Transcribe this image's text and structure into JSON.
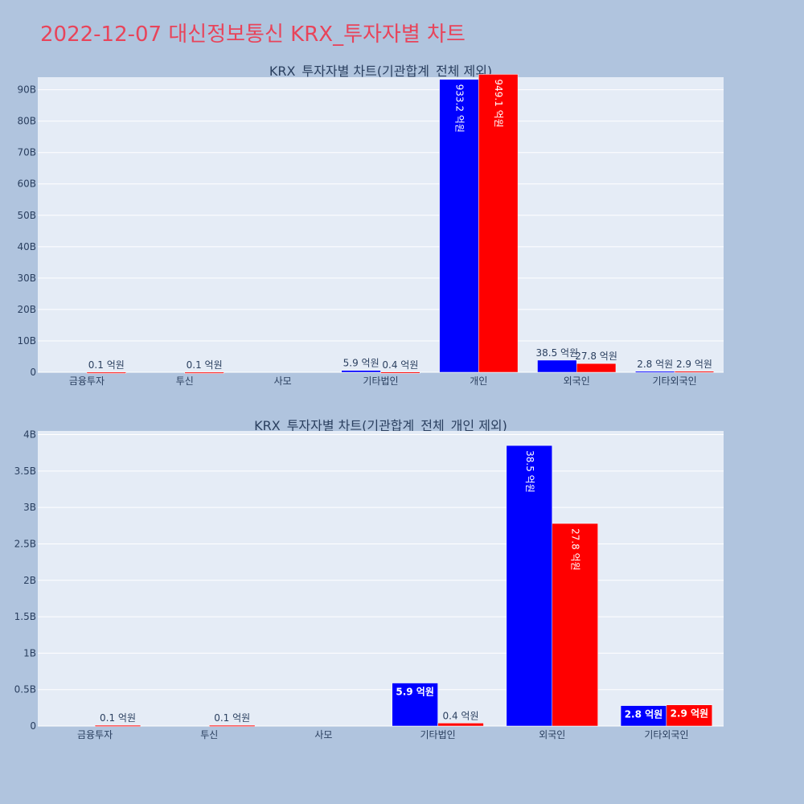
{
  "page": {
    "title": "2022-12-07 대신정보통신 KRX_투자자별 차트"
  },
  "colors": {
    "background": "#b0c4de",
    "plot_bg": "#e5ecf6",
    "grid": "#ffffff",
    "series_a": "#0000ff",
    "series_b": "#ff0000",
    "title": "#e8445a",
    "axis_text": "#2a3f5f"
  },
  "chart_data": [
    {
      "type": "bar",
      "title": "KRX_투자자별 차트(기관합계_전체 제외)",
      "categories": [
        "금융투자",
        "투신",
        "사모",
        "기타법인",
        "개인",
        "외국인",
        "기타외국인"
      ],
      "ylim": [
        0,
        9.4
      ],
      "yticks": [
        0,
        1,
        2,
        3,
        4,
        5,
        6,
        7,
        8,
        9
      ],
      "ytick_labels": [
        "0",
        "10B",
        "20B",
        "30B",
        "40B",
        "50B",
        "60B",
        "70B",
        "80B",
        "90B"
      ],
      "grid": true,
      "series": [
        {
          "color": "#0000ff",
          "values": [
            0,
            0,
            0,
            0.059,
            9.332,
            0.385,
            0.028
          ],
          "labels": [
            "",
            "",
            "",
            "5.9 억원",
            "933.2 억원",
            "38.5 억원",
            "2.8 억원"
          ]
        },
        {
          "color": "#ff0000",
          "values": [
            0.001,
            0.001,
            0,
            0.004,
            9.491,
            0.278,
            0.029
          ],
          "labels": [
            "0.1 억원",
            "0.1 억원",
            "",
            "0.4 억원",
            "949.1 억원",
            "27.8 억원",
            "2.9 억원"
          ]
        }
      ]
    },
    {
      "type": "bar",
      "title": "KRX_투자자별 차트(기관합계_전체_개인 제외)",
      "categories": [
        "금융투자",
        "투신",
        "사모",
        "기타법인",
        "외국인",
        "기타외국인"
      ],
      "ylim": [
        0,
        4.05
      ],
      "yticks": [
        0,
        0.5,
        1,
        1.5,
        2,
        2.5,
        3,
        3.5,
        4
      ],
      "ytick_labels": [
        "0",
        "0.5B",
        "1B",
        "1.5B",
        "2B",
        "2.5B",
        "3B",
        "3.5B",
        "4B"
      ],
      "grid": true,
      "series": [
        {
          "color": "#0000ff",
          "values": [
            0,
            0,
            0,
            0.59,
            3.85,
            0.28
          ],
          "labels": [
            "",
            "",
            "",
            "5.9 억원",
            "38.5 억원",
            "2.8 억원"
          ]
        },
        {
          "color": "#ff0000",
          "values": [
            0.01,
            0.01,
            0,
            0.04,
            2.78,
            0.29
          ],
          "labels": [
            "0.1 억원",
            "0.1 억원",
            "",
            "0.4 억원",
            "27.8 억원",
            "2.9 억원"
          ]
        }
      ]
    }
  ]
}
